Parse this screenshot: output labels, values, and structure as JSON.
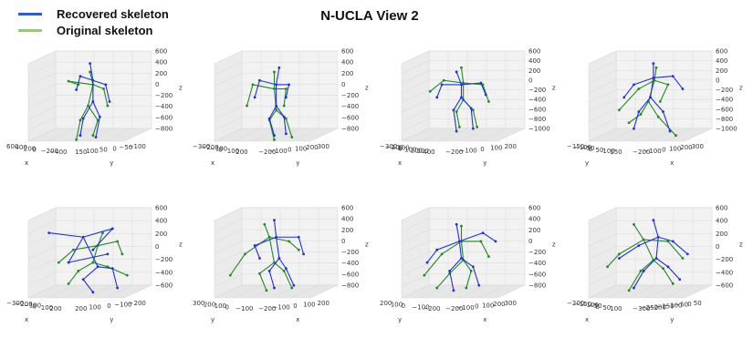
{
  "title": "N-UCLA View 2",
  "legend": [
    {
      "label": "Recovered skeleton",
      "color": "#2e5cd6"
    },
    {
      "label": "Original skeleton",
      "color": "#9cc77a"
    }
  ],
  "colors": {
    "recovered": "#1f2fe0",
    "original": "#1f8a1f",
    "pane": "#f2f2f2",
    "grid": "#d9d9d9"
  },
  "chart_data": [
    {
      "type": "scatter",
      "view": "3d",
      "z_ticks": [
        "600",
        "400",
        "200",
        "0",
        "−200",
        "−400",
        "−600",
        "−800"
      ],
      "zlabel": "z",
      "left_ticks": [
        "600",
        "400",
        "200",
        "0",
        "−200",
        "−400"
      ],
      "left_label": "x",
      "right_ticks": [
        "150",
        "100",
        "50",
        "0",
        "−50",
        "−100"
      ],
      "right_label": "y",
      "recovered": [
        [
          0.52,
          0.05
        ],
        [
          0.55,
          0.25
        ],
        [
          0.42,
          0.2
        ],
        [
          0.38,
          0.36
        ],
        [
          0.68,
          0.3
        ],
        [
          0.72,
          0.5
        ],
        [
          0.55,
          0.5
        ],
        [
          0.45,
          0.7
        ],
        [
          0.42,
          0.9
        ],
        [
          0.62,
          0.68
        ],
        [
          0.58,
          0.92
        ]
      ],
      "original": [
        [
          0.52,
          0.15
        ],
        [
          0.55,
          0.3
        ],
        [
          0.3,
          0.26
        ],
        [
          0.4,
          0.3
        ],
        [
          0.66,
          0.35
        ],
        [
          0.7,
          0.55
        ],
        [
          0.5,
          0.55
        ],
        [
          0.42,
          0.72
        ],
        [
          0.38,
          0.95
        ],
        [
          0.6,
          0.72
        ],
        [
          0.55,
          0.9
        ]
      ]
    },
    {
      "type": "scatter",
      "view": "3d",
      "z_ticks": [
        "600",
        "400",
        "200",
        "0",
        "−200",
        "−400",
        "−600",
        "−800"
      ],
      "zlabel": "z",
      "left_ticks": [
        "−300",
        "−200",
        "−100",
        "0",
        "100",
        "200"
      ],
      "left_label": "x",
      "right_ticks": [
        "−200",
        "−100",
        "0",
        "100",
        "200",
        "300"
      ],
      "right_label": "y",
      "recovered": [
        [
          0.55,
          0.1
        ],
        [
          0.52,
          0.3
        ],
        [
          0.35,
          0.25
        ],
        [
          0.3,
          0.45
        ],
        [
          0.65,
          0.3
        ],
        [
          0.62,
          0.45
        ],
        [
          0.52,
          0.55
        ],
        [
          0.45,
          0.7
        ],
        [
          0.5,
          0.9
        ],
        [
          0.6,
          0.68
        ],
        [
          0.62,
          0.88
        ]
      ],
      "original": [
        [
          0.5,
          0.15
        ],
        [
          0.5,
          0.35
        ],
        [
          0.28,
          0.3
        ],
        [
          0.22,
          0.55
        ],
        [
          0.62,
          0.35
        ],
        [
          0.6,
          0.55
        ],
        [
          0.52,
          0.6
        ],
        [
          0.45,
          0.72
        ],
        [
          0.5,
          0.95
        ],
        [
          0.62,
          0.7
        ],
        [
          0.68,
          0.92
        ]
      ]
    },
    {
      "type": "scatter",
      "view": "3d",
      "z_ticks": [
        "600",
        "400",
        "200",
        "0",
        "−200",
        "−400",
        "−600",
        "−800",
        "−1000"
      ],
      "zlabel": "z",
      "left_ticks": [
        "−300",
        "−200",
        "−100",
        "0",
        "100",
        "200",
        "300",
        "400"
      ],
      "left_label": "x",
      "right_ticks": [
        "−200",
        "−100",
        "0",
        "100",
        "200"
      ],
      "right_label": "y",
      "recovered": [
        [
          0.45,
          0.15
        ],
        [
          0.5,
          0.3
        ],
        [
          0.3,
          0.3
        ],
        [
          0.25,
          0.45
        ],
        [
          0.7,
          0.28
        ],
        [
          0.75,
          0.42
        ],
        [
          0.5,
          0.45
        ],
        [
          0.42,
          0.6
        ],
        [
          0.45,
          0.85
        ],
        [
          0.6,
          0.58
        ],
        [
          0.62,
          0.82
        ]
      ],
      "original": [
        [
          0.5,
          0.1
        ],
        [
          0.52,
          0.28
        ],
        [
          0.32,
          0.25
        ],
        [
          0.18,
          0.38
        ],
        [
          0.72,
          0.3
        ],
        [
          0.78,
          0.5
        ],
        [
          0.52,
          0.48
        ],
        [
          0.45,
          0.62
        ],
        [
          0.48,
          0.8
        ],
        [
          0.62,
          0.6
        ],
        [
          0.66,
          0.8
        ]
      ]
    },
    {
      "type": "scatter",
      "view": "3d",
      "z_ticks": [
        "600",
        "400",
        "200",
        "0",
        "−200",
        "−400",
        "−600",
        "−800",
        "−1000"
      ],
      "zlabel": "z",
      "left_ticks": [
        "−150",
        "−100",
        "−50",
        "0",
        "50",
        "100",
        "150"
      ],
      "left_label": "y",
      "right_ticks": [
        "−200",
        "−100",
        "0",
        "100",
        "200",
        "300"
      ],
      "right_label": "x",
      "recovered": [
        [
          0.55,
          0.05
        ],
        [
          0.55,
          0.22
        ],
        [
          0.35,
          0.3
        ],
        [
          0.25,
          0.45
        ],
        [
          0.75,
          0.2
        ],
        [
          0.85,
          0.35
        ],
        [
          0.52,
          0.45
        ],
        [
          0.4,
          0.62
        ],
        [
          0.35,
          0.82
        ],
        [
          0.65,
          0.62
        ],
        [
          0.72,
          0.85
        ]
      ],
      "original": [
        [
          0.58,
          0.1
        ],
        [
          0.56,
          0.25
        ],
        [
          0.4,
          0.35
        ],
        [
          0.2,
          0.6
        ],
        [
          0.7,
          0.3
        ],
        [
          0.62,
          0.5
        ],
        [
          0.5,
          0.5
        ],
        [
          0.42,
          0.65
        ],
        [
          0.3,
          0.75
        ],
        [
          0.6,
          0.68
        ],
        [
          0.78,
          0.9
        ]
      ]
    },
    {
      "type": "scatter",
      "view": "3d",
      "z_ticks": [
        "600",
        "400",
        "200",
        "0",
        "−200",
        "−400",
        "−600"
      ],
      "zlabel": "z",
      "left_ticks": [
        "−300",
        "−200",
        "−100",
        "0",
        "100",
        "200"
      ],
      "left_label": "x",
      "right_ticks": [
        "200",
        "100",
        "0",
        "−100",
        "−200"
      ],
      "right_label": "y",
      "recovered": [
        [
          0.1,
          0.2
        ],
        [
          0.45,
          0.25
        ],
        [
          0.75,
          0.15
        ],
        [
          0.55,
          0.4
        ],
        [
          0.3,
          0.55
        ],
        [
          0.7,
          0.45
        ],
        [
          0.6,
          0.6
        ],
        [
          0.45,
          0.75
        ],
        [
          0.55,
          0.9
        ],
        [
          0.75,
          0.62
        ],
        [
          0.8,
          0.85
        ]
      ],
      "original": [
        [
          0.65,
          0.2
        ],
        [
          0.6,
          0.35
        ],
        [
          0.35,
          0.4
        ],
        [
          0.2,
          0.55
        ],
        [
          0.8,
          0.3
        ],
        [
          0.85,
          0.45
        ],
        [
          0.55,
          0.55
        ],
        [
          0.4,
          0.65
        ],
        [
          0.3,
          0.8
        ],
        [
          0.7,
          0.6
        ],
        [
          0.9,
          0.7
        ]
      ]
    },
    {
      "type": "scatter",
      "view": "3d",
      "z_ticks": [
        "600",
        "400",
        "200",
        "0",
        "−200",
        "−400",
        "−600",
        "−800"
      ],
      "zlabel": "z",
      "left_ticks": [
        "300",
        "200",
        "100",
        "0",
        "−100"
      ],
      "left_label": "y",
      "right_ticks": [
        "−200",
        "−100",
        "0",
        "100",
        "200"
      ],
      "right_label": "x",
      "recovered": [
        [
          0.5,
          0.05
        ],
        [
          0.52,
          0.25
        ],
        [
          0.3,
          0.35
        ],
        [
          0.35,
          0.5
        ],
        [
          0.75,
          0.25
        ],
        [
          0.8,
          0.45
        ],
        [
          0.55,
          0.5
        ],
        [
          0.45,
          0.65
        ],
        [
          0.5,
          0.85
        ],
        [
          0.62,
          0.62
        ],
        [
          0.7,
          0.82
        ]
      ],
      "original": [
        [
          0.4,
          0.1
        ],
        [
          0.45,
          0.25
        ],
        [
          0.2,
          0.45
        ],
        [
          0.05,
          0.7
        ],
        [
          0.65,
          0.3
        ],
        [
          0.75,
          0.4
        ],
        [
          0.5,
          0.55
        ],
        [
          0.35,
          0.68
        ],
        [
          0.42,
          0.88
        ],
        [
          0.6,
          0.65
        ],
        [
          0.68,
          0.85
        ]
      ]
    },
    {
      "type": "scatter",
      "view": "3d",
      "z_ticks": [
        "600",
        "400",
        "200",
        "0",
        "−200",
        "−400",
        "−600",
        "−800"
      ],
      "zlabel": "z",
      "left_ticks": [
        "200",
        "100",
        "0",
        "−100",
        "−200"
      ],
      "left_label": "y",
      "right_ticks": [
        "−200",
        "−100",
        "0",
        "100",
        "200",
        "300"
      ],
      "right_label": "x",
      "recovered": [
        [
          0.45,
          0.1
        ],
        [
          0.48,
          0.3
        ],
        [
          0.25,
          0.4
        ],
        [
          0.15,
          0.55
        ],
        [
          0.72,
          0.2
        ],
        [
          0.85,
          0.3
        ],
        [
          0.5,
          0.5
        ],
        [
          0.38,
          0.65
        ],
        [
          0.42,
          0.88
        ],
        [
          0.62,
          0.6
        ],
        [
          0.68,
          0.82
        ]
      ],
      "original": [
        [
          0.5,
          0.12
        ],
        [
          0.5,
          0.3
        ],
        [
          0.3,
          0.45
        ],
        [
          0.12,
          0.7
        ],
        [
          0.7,
          0.3
        ],
        [
          0.78,
          0.48
        ],
        [
          0.52,
          0.52
        ],
        [
          0.38,
          0.68
        ],
        [
          0.25,
          0.85
        ],
        [
          0.6,
          0.65
        ],
        [
          0.55,
          0.85
        ]
      ]
    },
    {
      "type": "scatter",
      "view": "3d",
      "z_ticks": [
        "600",
        "400",
        "200",
        "0",
        "−200",
        "−400",
        "−600"
      ],
      "zlabel": "z",
      "left_ticks": [
        "−200",
        "−150",
        "−100",
        "−50",
        "0",
        "50",
        "100"
      ],
      "left_label": "x",
      "right_ticks": [
        "−300",
        "−250",
        "−200",
        "−150",
        "−100",
        "−50",
        "0",
        "50"
      ],
      "right_label": "y",
      "recovered": [
        [
          0.55,
          0.05
        ],
        [
          0.6,
          0.25
        ],
        [
          0.4,
          0.35
        ],
        [
          0.2,
          0.5
        ],
        [
          0.75,
          0.3
        ],
        [
          0.9,
          0.45
        ],
        [
          0.58,
          0.5
        ],
        [
          0.45,
          0.65
        ],
        [
          0.35,
          0.85
        ],
        [
          0.7,
          0.6
        ],
        [
          0.82,
          0.75
        ]
      ],
      "original": [
        [
          0.35,
          0.1
        ],
        [
          0.45,
          0.28
        ],
        [
          0.2,
          0.45
        ],
        [
          0.08,
          0.6
        ],
        [
          0.7,
          0.3
        ],
        [
          0.85,
          0.5
        ],
        [
          0.55,
          0.52
        ],
        [
          0.42,
          0.65
        ],
        [
          0.3,
          0.88
        ],
        [
          0.65,
          0.62
        ],
        [
          0.75,
          0.8
        ]
      ]
    }
  ]
}
